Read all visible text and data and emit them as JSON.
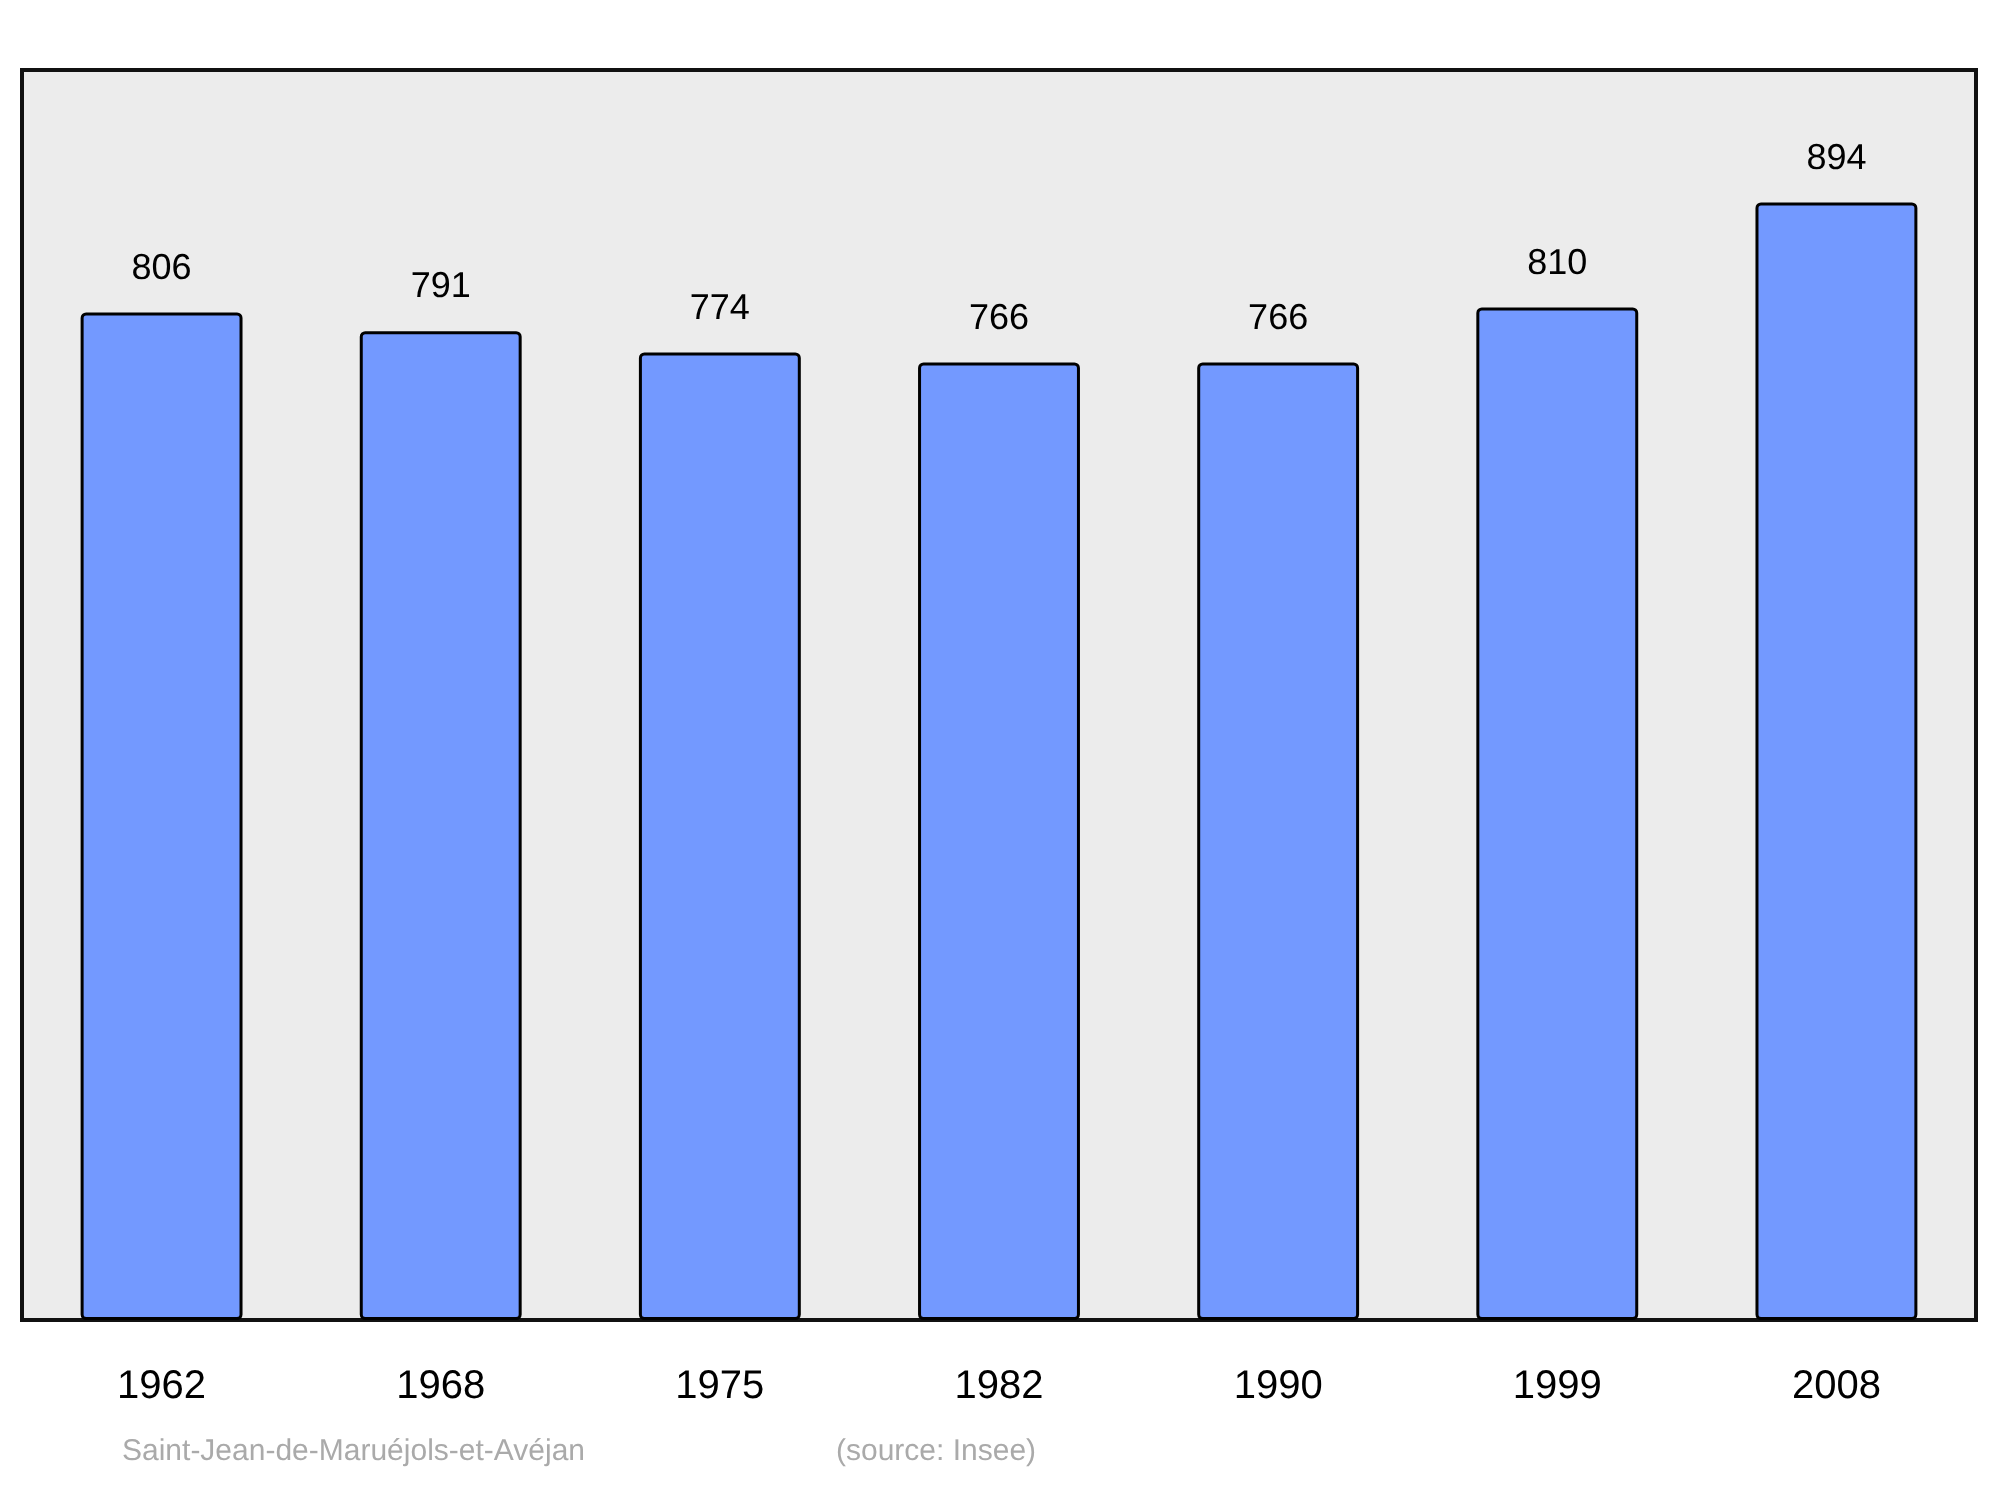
{
  "chart_data": {
    "type": "bar",
    "categories": [
      "1962",
      "1968",
      "1975",
      "1982",
      "1990",
      "1999",
      "2008"
    ],
    "values": [
      806,
      791,
      774,
      766,
      766,
      810,
      894
    ],
    "color": "#7399ff",
    "data_labels": true,
    "annotations": [
      "Saint-Jean-de-Maruéjols-et-Avéjan",
      "(source: Insee)"
    ]
  }
}
